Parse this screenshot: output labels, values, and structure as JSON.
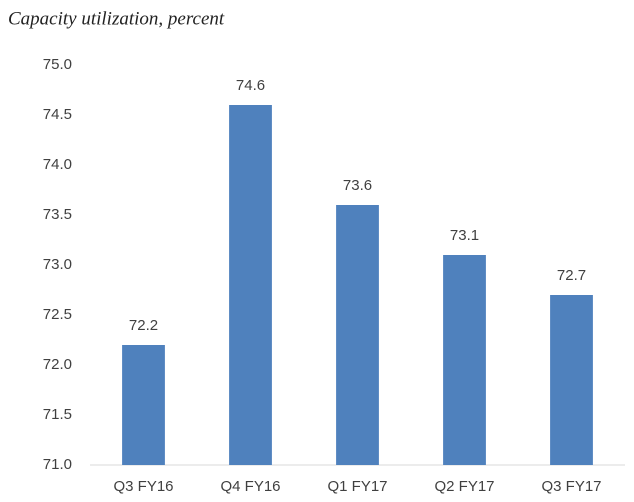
{
  "chart_data": {
    "type": "bar",
    "subtitle": "Capacity utilization, percent",
    "categories": [
      "Q3 FY16",
      "Q4 FY16",
      "Q1 FY17",
      "Q2 FY17",
      "Q3 FY17"
    ],
    "values": [
      72.2,
      74.6,
      73.6,
      73.1,
      72.7
    ],
    "color": "#4f81bd",
    "ylim": [
      71,
      75
    ],
    "yticks": [
      {
        "value": 71,
        "label": "71.0"
      },
      {
        "value": 71.5,
        "label": "71.5"
      },
      {
        "value": 72,
        "label": "72.0"
      },
      {
        "value": 72.5,
        "label": "72.5"
      },
      {
        "value": 73,
        "label": "73.0"
      },
      {
        "value": 73.5,
        "label": "73.5"
      },
      {
        "value": 74,
        "label": "74.0"
      },
      {
        "value": 74.5,
        "label": "74.5"
      },
      {
        "value": 75,
        "label": "75.0"
      }
    ],
    "grid": false
  }
}
